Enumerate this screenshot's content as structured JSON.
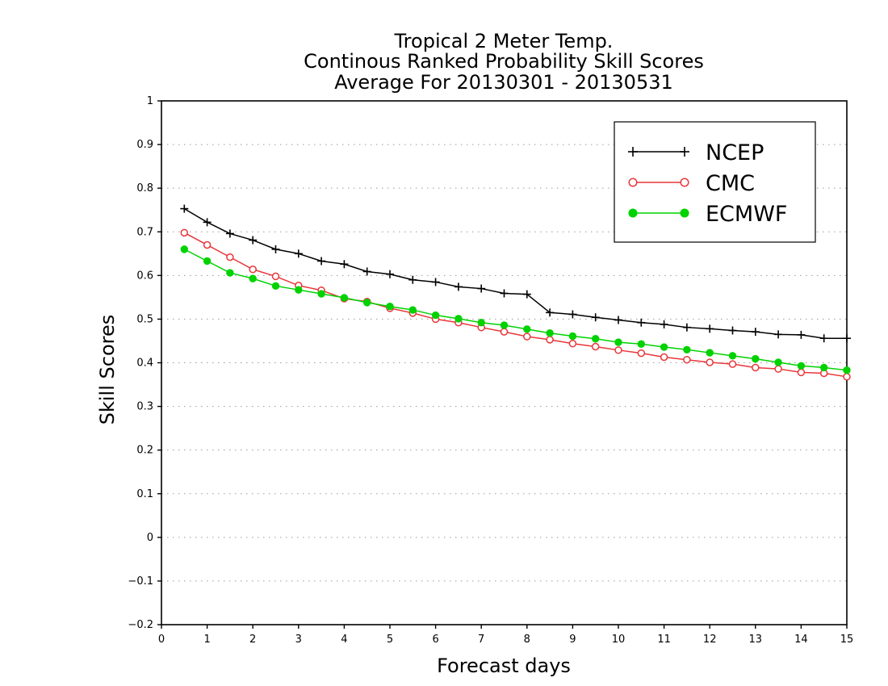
{
  "chart_data": {
    "type": "line",
    "title": [
      "Tropical 2 Meter Temp.",
      "Continous Ranked Probability Skill Scores",
      "Average For 20130301 - 20130531"
    ],
    "xlabel": "Forecast days",
    "ylabel": "Skill Scores",
    "xlim": [
      0,
      15
    ],
    "ylim": [
      -0.2,
      1
    ],
    "xticks": [
      0,
      1,
      2,
      3,
      4,
      5,
      6,
      7,
      8,
      9,
      10,
      11,
      12,
      13,
      14,
      15
    ],
    "xtick_labels": [
      "0",
      "1",
      "2",
      "3",
      "4",
      "5",
      "6",
      "7",
      "8",
      "9",
      "10",
      "11",
      "12",
      "13",
      "14",
      "15"
    ],
    "yticks": [
      -0.2,
      -0.1,
      0,
      0.1,
      0.2,
      0.3,
      0.4,
      0.5,
      0.6,
      0.7,
      0.8,
      0.9,
      1
    ],
    "ytick_labels": [
      "−0.2",
      "−0.1",
      "0",
      "0.1",
      "0.2",
      "0.3",
      "0.4",
      "0.5",
      "0.6",
      "0.7",
      "0.8",
      "0.9",
      "1"
    ],
    "grid": "horizontal dotted",
    "legend_position": "top-right",
    "x": [
      0.5,
      1,
      1.5,
      2,
      2.5,
      3,
      3.5,
      4,
      4.5,
      5,
      5.5,
      6,
      6.5,
      7,
      7.5,
      8,
      8.5,
      9,
      9.5,
      10,
      10.5,
      11,
      11.5,
      12,
      12.5,
      13,
      13.5,
      14,
      14.5,
      15
    ],
    "series": [
      {
        "name": "NCEP",
        "color": "#000000",
        "marker": "plus",
        "values": [
          0.753,
          0.722,
          0.696,
          0.681,
          0.66,
          0.65,
          0.633,
          0.626,
          0.609,
          0.603,
          0.59,
          0.585,
          0.574,
          0.57,
          0.559,
          0.557,
          0.515,
          0.511,
          0.504,
          0.498,
          0.492,
          0.488,
          0.481,
          0.478,
          0.474,
          0.471,
          0.465,
          0.464,
          0.456,
          0.456
        ]
      },
      {
        "name": "CMC",
        "color": "#e8363a",
        "marker": "open-circle",
        "values": [
          0.698,
          0.67,
          0.642,
          0.614,
          0.598,
          0.577,
          0.566,
          0.547,
          0.54,
          0.525,
          0.514,
          0.5,
          0.492,
          0.481,
          0.471,
          0.46,
          0.453,
          0.444,
          0.437,
          0.429,
          0.422,
          0.413,
          0.407,
          0.401,
          0.397,
          0.389,
          0.386,
          0.378,
          0.376,
          0.368
        ]
      },
      {
        "name": "ECMWF",
        "color": "#00d200",
        "marker": "filled-circle",
        "values": [
          0.66,
          0.633,
          0.606,
          0.593,
          0.576,
          0.567,
          0.558,
          0.549,
          0.538,
          0.529,
          0.521,
          0.509,
          0.501,
          0.492,
          0.486,
          0.477,
          0.468,
          0.461,
          0.455,
          0.447,
          0.443,
          0.436,
          0.43,
          0.423,
          0.416,
          0.409,
          0.401,
          0.393,
          0.389,
          0.383
        ]
      }
    ]
  }
}
